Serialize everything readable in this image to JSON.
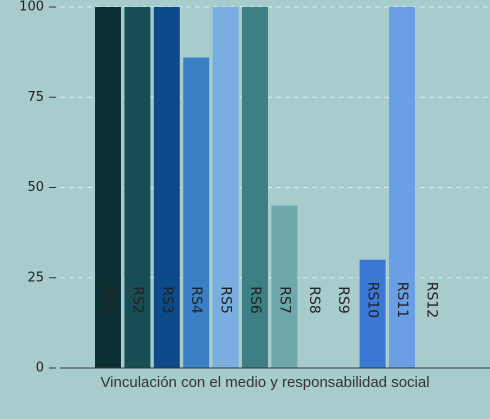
{
  "chart_data": {
    "type": "bar",
    "xlabel": "Vinculación con el medio y responsabilidad social",
    "categories": [
      "RS1",
      "RS2",
      "RS3",
      "RS4",
      "RS5",
      "RS6",
      "RS7",
      "RS8",
      "RS9",
      "RS10",
      "RS11",
      "RS12"
    ],
    "values": [
      100,
      100,
      100,
      86,
      100,
      100,
      45,
      0,
      0,
      30,
      100,
      0
    ],
    "colors": [
      "#0b2f33",
      "#174d55",
      "#0d4a8a",
      "#3a80c4",
      "#79aee0",
      "#3d7f85",
      "#6fa8ac",
      "#5f9ea0",
      "#5f9ea0",
      "#3a78d4",
      "#6a9fe6",
      "#5f9ea0"
    ],
    "ylim": [
      0,
      100
    ],
    "yticks": [
      0,
      25,
      50,
      75,
      100
    ],
    "grid": true
  }
}
